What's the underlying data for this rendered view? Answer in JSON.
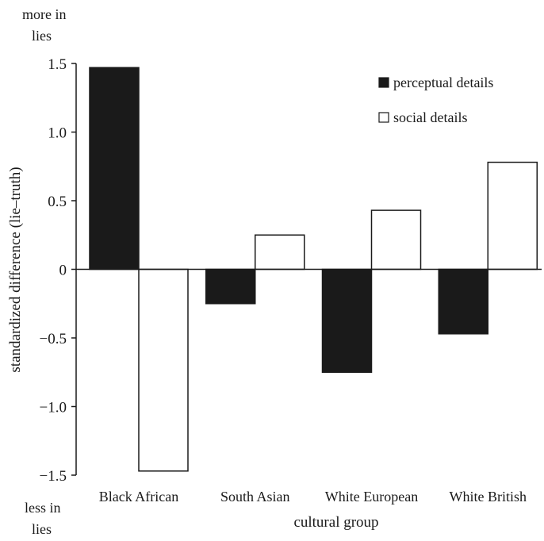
{
  "chart_data": {
    "type": "bar",
    "title": "",
    "xlabel": "cultural group",
    "ylabel": "standardized difference (lie–truth)",
    "ylim": [
      -1.5,
      1.5
    ],
    "yticks": [
      1.5,
      1.0,
      0.5,
      0,
      -0.5,
      -1.0,
      -1.5
    ],
    "ytick_labels": [
      "1.5",
      "1.0",
      "0.5",
      "0",
      "−0.5",
      "−1.0",
      "−1.5"
    ],
    "categories": [
      "Black African",
      "South Asian",
      "White European",
      "White British"
    ],
    "series": [
      {
        "name": "perceptual details",
        "values": [
          1.47,
          -0.25,
          -0.75,
          -0.47
        ],
        "fill": "#1a1a1a"
      },
      {
        "name": "social details",
        "values": [
          -1.47,
          0.25,
          0.43,
          0.78
        ],
        "fill": "#ffffff"
      }
    ],
    "grid": false,
    "legend_position": "top-right",
    "annotations": {
      "top": [
        "more in",
        "lies"
      ],
      "bottom": [
        "less in",
        "lies"
      ]
    }
  }
}
